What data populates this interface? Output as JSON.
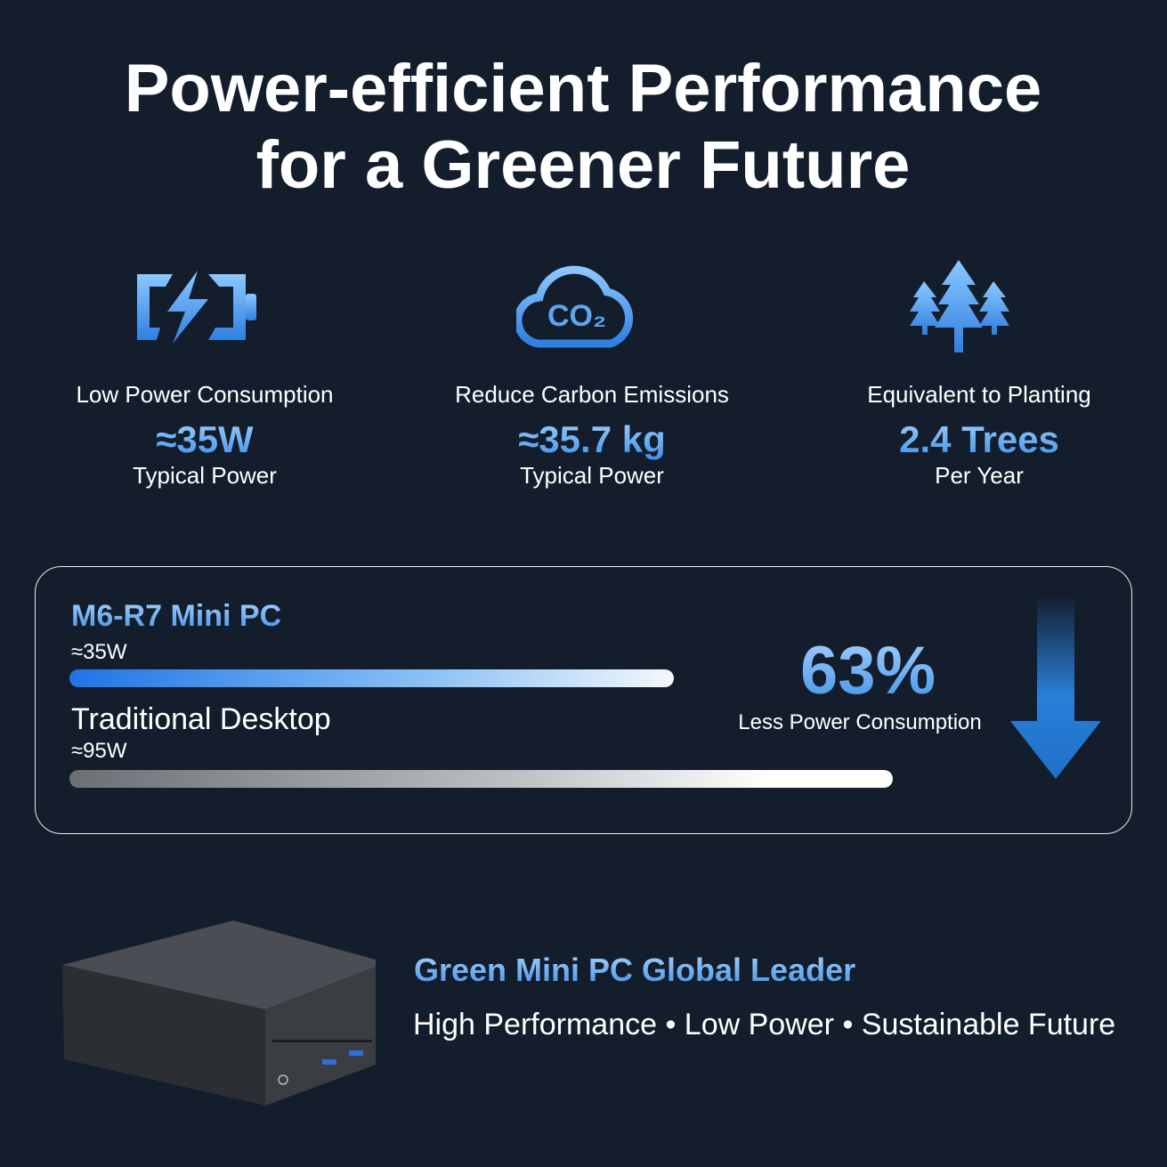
{
  "header": {
    "title_line1": "Power-efficient Performance",
    "title_line2": "for a Greener Future"
  },
  "stats": [
    {
      "label": "Low Power Consumption",
      "value": "≈35W",
      "caption": "Typical Power"
    },
    {
      "icon_text": "CO₂",
      "label": "Reduce Carbon Emissions",
      "value": "≈35.7 kg",
      "caption": "Typical Power"
    },
    {
      "label": "Equivalent to Planting",
      "value": "2.4 Trees",
      "caption": "Per Year"
    }
  ],
  "comparison": {
    "items": [
      {
        "name": "M6-R7 Mini PC",
        "value": "≈35W"
      },
      {
        "name": "Traditional Desktop",
        "value": "≈95W"
      }
    ],
    "percent": "63%",
    "percent_caption": "Less Power Consumption"
  },
  "footer": {
    "headline": "Green Mini PC Global Leader",
    "tagline": "High Performance • Low Power • Sustainable Future"
  }
}
